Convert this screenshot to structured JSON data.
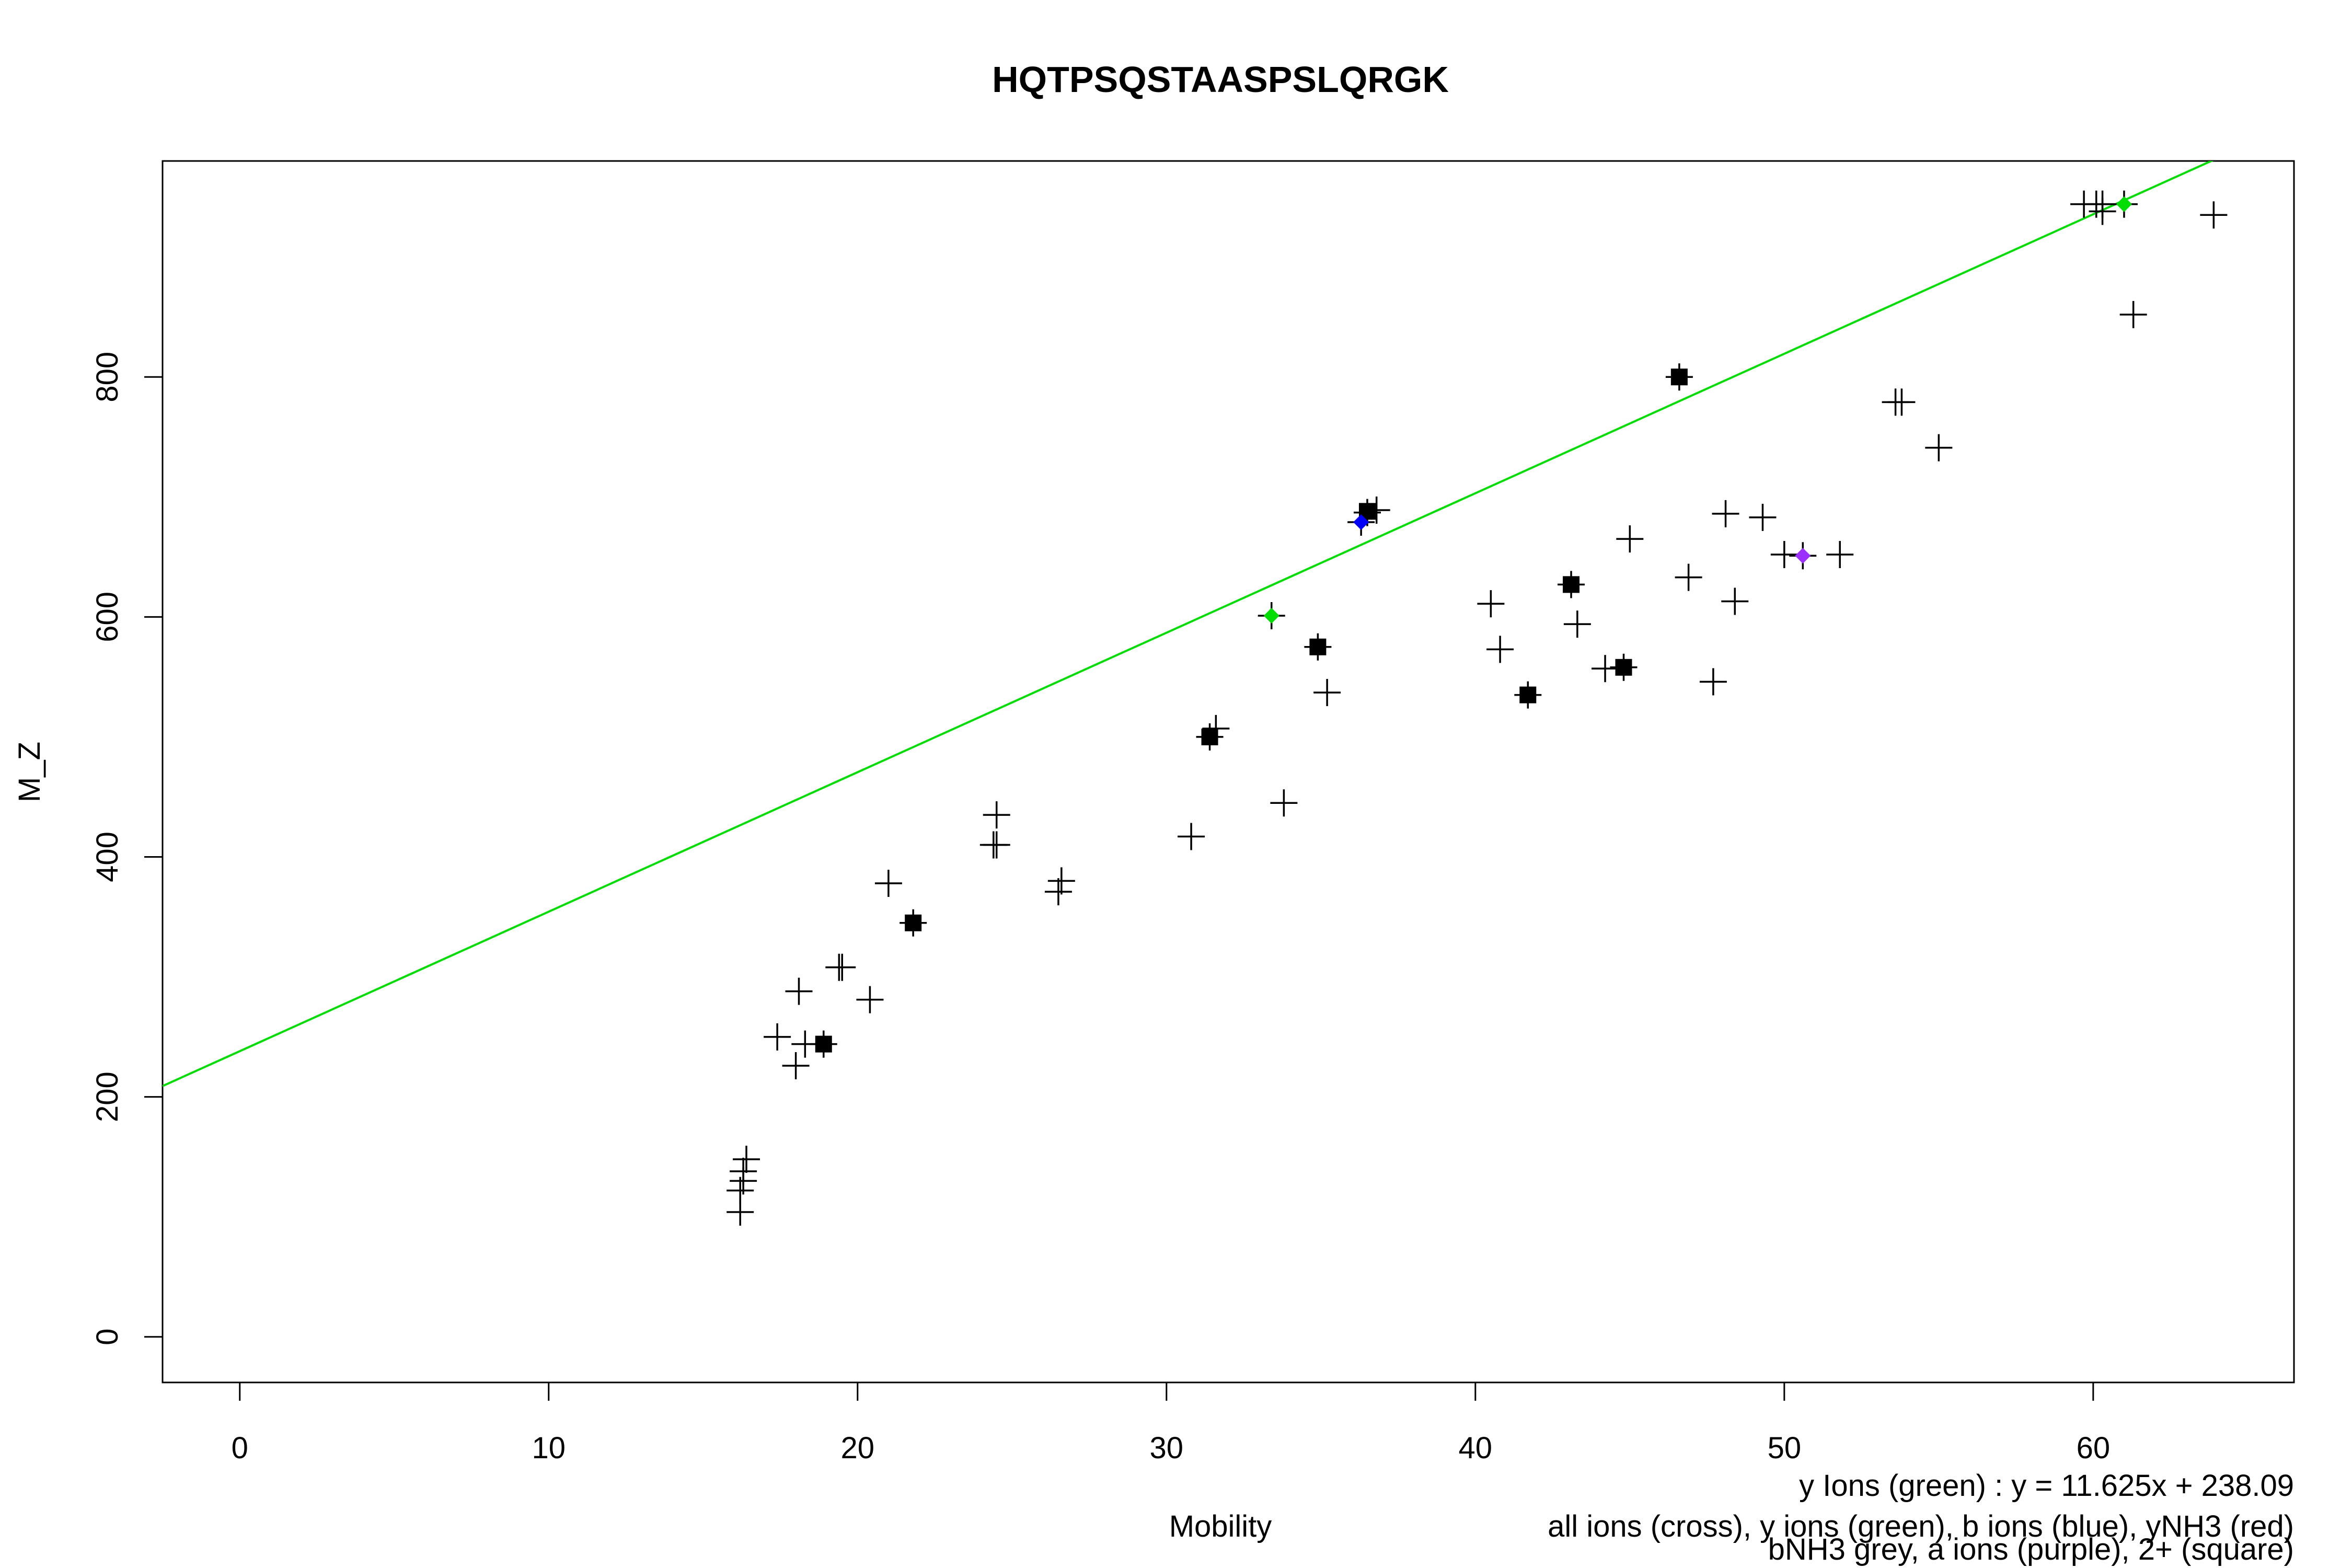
{
  "chart_data": {
    "type": "scatter",
    "title": "HQTPSQSTAASPSLQRGK",
    "xlabel": "Mobility",
    "ylabel": "M_Z",
    "xlim": [
      -2.5,
      66.5
    ],
    "ylim": [
      -38,
      980
    ],
    "x_ticks": [
      0,
      10,
      20,
      30,
      40,
      50,
      60
    ],
    "y_ticks": [
      0,
      200,
      400,
      600,
      800
    ],
    "grid": false,
    "fit_line": {
      "name": "y Ions (green)",
      "slope": 11.625,
      "intercept": 238.09,
      "color": "#00dd00"
    },
    "legend_lines": [
      "y Ions (green) : y = 11.625x + 238.09",
      "all ions (cross), y ions (green), b ions (blue), yNH3 (red)",
      "bNH3 grey, a ions (purple), 2+ (square)"
    ],
    "colors": {
      "all": "#000000",
      "y": "#00dd00",
      "b": "#0000ff",
      "a": "#9b30ff",
      "fit": "#00dd00"
    },
    "series": [
      {
        "name": "all ions (cross)",
        "marker": "cross",
        "color": "#000000",
        "points": [
          [
            16.2,
            104
          ],
          [
            16.2,
            122
          ],
          [
            16.3,
            130
          ],
          [
            16.3,
            138
          ],
          [
            16.4,
            148
          ],
          [
            17.4,
            250
          ],
          [
            18.0,
            226
          ],
          [
            18.1,
            288
          ],
          [
            18.3,
            244
          ],
          [
            18.9,
            244
          ],
          [
            19.4,
            308
          ],
          [
            19.5,
            308
          ],
          [
            20.4,
            281
          ],
          [
            21.0,
            378
          ],
          [
            21.8,
            345
          ],
          [
            24.4,
            410
          ],
          [
            24.5,
            410
          ],
          [
            24.5,
            435
          ],
          [
            26.5,
            371
          ],
          [
            26.6,
            380
          ],
          [
            30.8,
            417
          ],
          [
            31.4,
            500
          ],
          [
            31.6,
            507
          ],
          [
            33.4,
            601
          ],
          [
            33.8,
            445
          ],
          [
            34.9,
            575
          ],
          [
            35.2,
            537
          ],
          [
            36.3,
            679
          ],
          [
            36.5,
            687
          ],
          [
            36.8,
            689
          ],
          [
            40.5,
            611
          ],
          [
            40.8,
            573
          ],
          [
            41.7,
            535
          ],
          [
            43.1,
            627
          ],
          [
            43.3,
            594
          ],
          [
            44.2,
            557
          ],
          [
            44.8,
            558
          ],
          [
            45.0,
            665
          ],
          [
            46.6,
            800
          ],
          [
            46.9,
            633
          ],
          [
            47.7,
            546
          ],
          [
            48.1,
            686
          ],
          [
            48.4,
            613
          ],
          [
            49.3,
            683
          ],
          [
            50.0,
            652
          ],
          [
            50.6,
            651
          ],
          [
            51.8,
            652
          ],
          [
            53.6,
            779
          ],
          [
            53.8,
            779
          ],
          [
            55.0,
            741
          ],
          [
            59.7,
            944
          ],
          [
            60.1,
            944
          ],
          [
            60.3,
            944
          ],
          [
            60.3,
            938
          ],
          [
            61.0,
            944
          ],
          [
            61.3,
            852
          ],
          [
            63.9,
            935
          ]
        ]
      },
      {
        "name": "2+ (square)",
        "marker": "square",
        "color": "#000000",
        "points": [
          [
            18.9,
            244
          ],
          [
            21.8,
            345
          ],
          [
            31.4,
            500
          ],
          [
            34.9,
            575
          ],
          [
            36.5,
            688
          ],
          [
            41.7,
            535
          ],
          [
            43.1,
            627
          ],
          [
            44.8,
            558
          ],
          [
            46.6,
            800
          ]
        ]
      },
      {
        "name": "y ions (green)",
        "marker": "diamond",
        "color": "#00dd00",
        "points": [
          [
            33.4,
            601
          ],
          [
            61.0,
            944
          ]
        ]
      },
      {
        "name": "b ions (blue)",
        "marker": "diamond",
        "color": "#0000ff",
        "points": [
          [
            36.3,
            679
          ]
        ]
      },
      {
        "name": "a ions (purple)",
        "marker": "diamond",
        "color": "#9b30ff",
        "points": [
          [
            50.6,
            651
          ]
        ]
      }
    ]
  }
}
